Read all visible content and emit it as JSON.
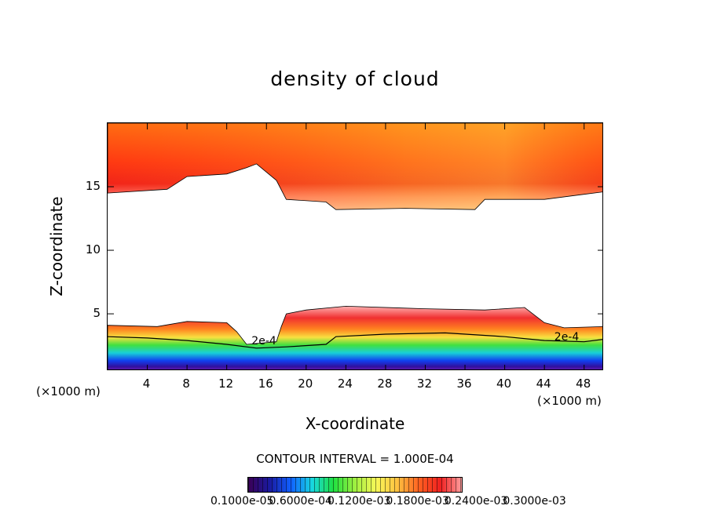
{
  "chart_data": {
    "type": "heatmap",
    "title": "density of cloud",
    "xlabel": "X-coordinate",
    "ylabel": "Z-coordinate",
    "x_unit": "(×1000 m)",
    "y_unit": "(×1000 m)",
    "xlim": [
      0,
      50
    ],
    "ylim": [
      0.5,
      20
    ],
    "x_ticks": [
      "4",
      "8",
      "12",
      "16",
      "20",
      "24",
      "28",
      "32",
      "36",
      "40",
      "44",
      "48"
    ],
    "y_ticks": [
      "5",
      "10",
      "15"
    ],
    "contour_interval_text": "CONTOUR INTERVAL = 1.000E-04",
    "contour_line_labels": [
      "2e-4",
      "2e-4"
    ],
    "colorbar_labels": [
      "0.1000e-05",
      "0.6000e-04",
      "0.1200e-03",
      "0.1800e-03",
      "0.2400e-03",
      "0.3000e-03"
    ],
    "colormap": [
      "#3b0055",
      "#1a1aa0",
      "#1060ff",
      "#18d8e0",
      "#20e040",
      "#a0f040",
      "#f8f858",
      "#ffc040",
      "#ff6020",
      "#f02020",
      "#ffa0a0"
    ],
    "upper_layer_base": [
      [
        0,
        14.5
      ],
      [
        6,
        14.8
      ],
      [
        8,
        15.8
      ],
      [
        12,
        16.0
      ],
      [
        14,
        16.5
      ],
      [
        15,
        16.8
      ],
      [
        17,
        15.5
      ],
      [
        18,
        14.0
      ],
      [
        22,
        13.8
      ],
      [
        23,
        13.2
      ],
      [
        30,
        13.3
      ],
      [
        37,
        13.2
      ],
      [
        38,
        14.0
      ],
      [
        44,
        14.0
      ],
      [
        48,
        14.4
      ],
      [
        50,
        14.6
      ]
    ],
    "lower_layer_top": [
      [
        0,
        4.1
      ],
      [
        5,
        4.0
      ],
      [
        8,
        4.4
      ],
      [
        12,
        4.3
      ],
      [
        13,
        3.6
      ],
      [
        14,
        2.6
      ],
      [
        17,
        2.8
      ],
      [
        17.5,
        4.0
      ],
      [
        18,
        5.0
      ],
      [
        20,
        5.3
      ],
      [
        24,
        5.6
      ],
      [
        32,
        5.4
      ],
      [
        38,
        5.3
      ],
      [
        42,
        5.5
      ],
      [
        44,
        4.3
      ],
      [
        46,
        3.9
      ],
      [
        50,
        4.0
      ]
    ]
  }
}
